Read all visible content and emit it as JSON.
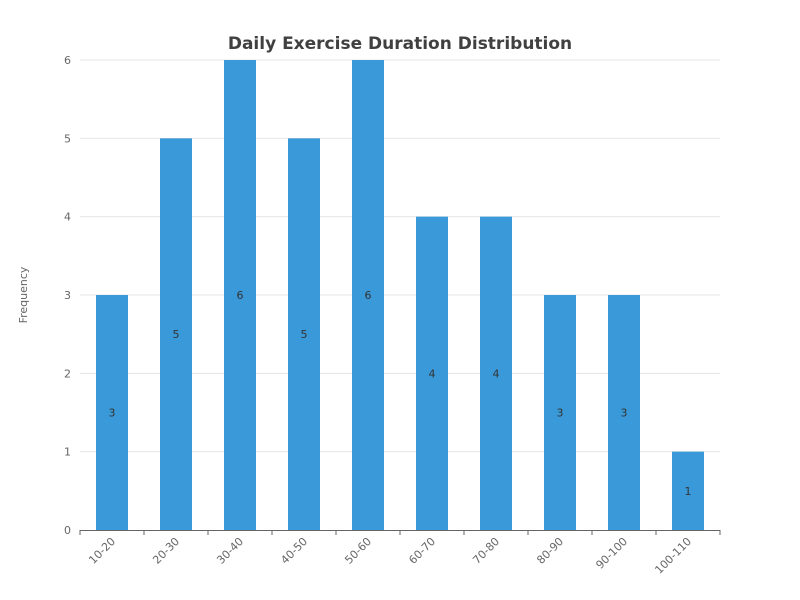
{
  "chart_data": {
    "type": "bar",
    "title": "Daily Exercise Duration Distribution",
    "xlabel": "",
    "ylabel": "Frequency",
    "categories": [
      "10-20",
      "20-30",
      "30-40",
      "40-50",
      "50-60",
      "60-70",
      "70-80",
      "80-90",
      "90-100",
      "100-110"
    ],
    "values": [
      3,
      5,
      6,
      5,
      6,
      4,
      4,
      3,
      3,
      1
    ],
    "ylim": [
      0,
      6
    ],
    "yticks": [
      0,
      1,
      2,
      3,
      4,
      5,
      6
    ],
    "grid": true,
    "legend": "none",
    "bar_color": "#3a99d9",
    "grid_color": "#e6e6e6",
    "axis_color": "#666666"
  }
}
